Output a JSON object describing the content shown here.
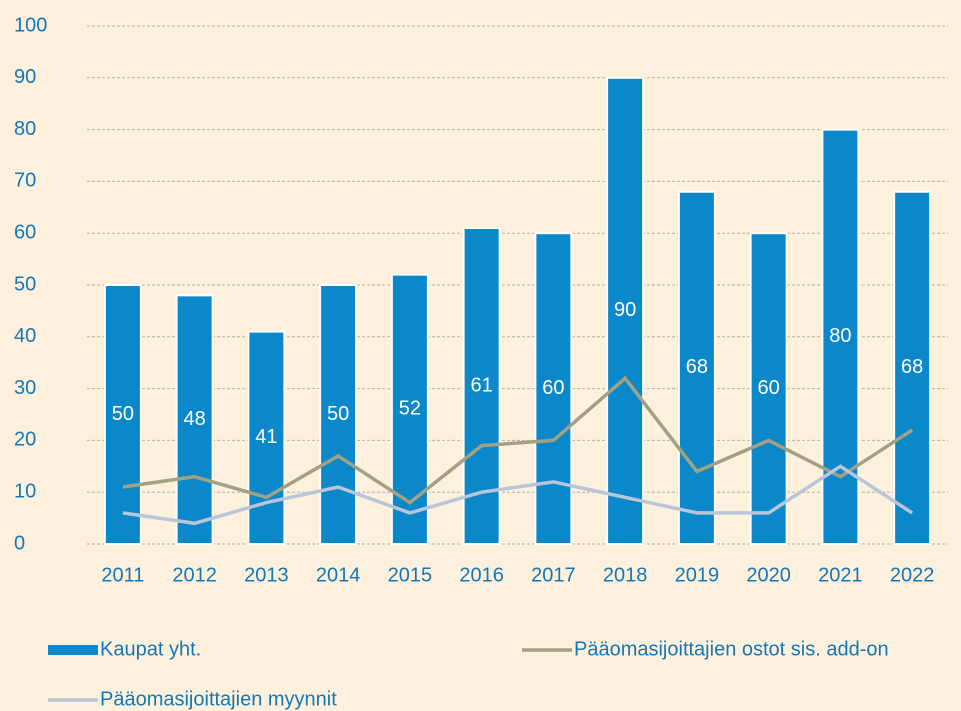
{
  "chart_data": {
    "type": "bar",
    "categories": [
      "2011",
      "2012",
      "2013",
      "2014",
      "2015",
      "2016",
      "2017",
      "2018",
      "2019",
      "2020",
      "2021",
      "2022"
    ],
    "series": [
      {
        "name": "Kaupat yht.",
        "type": "bar",
        "color": "#0b88c9",
        "values": [
          50,
          48,
          41,
          50,
          52,
          61,
          60,
          90,
          68,
          60,
          80,
          68
        ]
      },
      {
        "name": "Pääomasijoittajien ostot sis. add-on",
        "type": "line",
        "color": "#a4a182",
        "values": [
          11,
          13,
          9,
          17,
          8,
          19,
          20,
          32,
          14,
          20,
          13,
          22
        ]
      },
      {
        "name": "Pääomasijoittajien myynnit",
        "type": "line",
        "color": "#b9c5d8",
        "values": [
          6,
          4,
          8,
          11,
          6,
          10,
          12,
          9,
          6,
          6,
          15,
          6
        ]
      }
    ],
    "ylim": [
      0,
      100
    ],
    "yticks": [
      0,
      10,
      20,
      30,
      40,
      50,
      60,
      70,
      80,
      90,
      100
    ],
    "grid": true
  }
}
